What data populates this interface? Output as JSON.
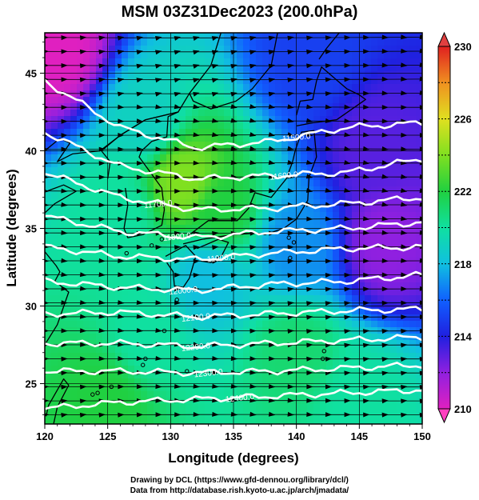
{
  "title": "MSM 03Z31Dec2023 (200.0hPa)",
  "credits": [
    "Drawing by DCL (https://www.gfd-dennou.org/library/dcl/)",
    "Data from http://database.rish.kyoto-u.ac.jp/arch/jmadata/"
  ],
  "chart_data": {
    "type": "heatmap",
    "title": "MSM 03Z31Dec2023 (200.0hPa)",
    "xlabel": "Longitude (degrees)",
    "ylabel": "Latitude  (degrees)",
    "xlim": [
      120,
      150
    ],
    "ylim": [
      22.4,
      47.6
    ],
    "xticks": [
      120,
      125,
      130,
      135,
      140,
      145,
      150
    ],
    "yticks": [
      25,
      30,
      35,
      40,
      45
    ],
    "shading": {
      "variable": "temperature (K)",
      "range": [
        210,
        230
      ],
      "colorbar_ticks": [
        210,
        214,
        218,
        222,
        226,
        230
      ],
      "colorbar_position": "right",
      "regions": [
        {
          "lon": 121,
          "lat": 46.5,
          "value": 210
        },
        {
          "lon": 128,
          "lat": 42,
          "value": 219
        },
        {
          "lon": 131,
          "lat": 38,
          "value": 224
        },
        {
          "lon": 134,
          "lat": 36,
          "value": 222
        },
        {
          "lon": 126,
          "lat": 36,
          "value": 220
        },
        {
          "lon": 141,
          "lat": 46,
          "value": 215
        },
        {
          "lon": 146,
          "lat": 40,
          "value": 213
        },
        {
          "lon": 147,
          "lat": 34,
          "value": 212
        },
        {
          "lon": 140,
          "lat": 34,
          "value": 217
        },
        {
          "lon": 133,
          "lat": 32,
          "value": 218
        },
        {
          "lon": 128,
          "lat": 28,
          "value": 220
        },
        {
          "lon": 140,
          "lat": 27,
          "value": 221
        },
        {
          "lon": 125,
          "lat": 24,
          "value": 222
        },
        {
          "lon": 145,
          "lat": 24,
          "value": 220
        }
      ]
    },
    "contours": [
      {
        "value": "11500.0",
        "lats": [
          44.5,
          41.5,
          40.2,
          40.6,
          41.5,
          41.8
        ]
      },
      {
        "value": "11600.0",
        "lats": [
          41.2,
          39.0,
          38.2,
          38.4,
          38.6,
          39.5
        ]
      },
      {
        "value": "11700.0",
        "lats": [
          38.6,
          37.0,
          36.2,
          36.3,
          36.6,
          37.0
        ]
      },
      {
        "value": "11800.0",
        "lats": [
          35.8,
          34.8,
          34.4,
          34.8,
          35.0,
          35.4
        ]
      },
      {
        "value": "11900.0",
        "lats": [
          33.8,
          33.2,
          33.0,
          33.4,
          33.7,
          33.8
        ]
      },
      {
        "value": "12000.0",
        "lats": [
          31.6,
          31.2,
          31.0,
          31.4,
          31.6,
          32.0
        ]
      },
      {
        "value": "12100.0",
        "lats": [
          29.5,
          29.6,
          29.3,
          29.5,
          29.7,
          29.8
        ]
      },
      {
        "value": "12200.0",
        "lats": [
          27.6,
          27.6,
          27.4,
          27.6,
          27.8,
          28.0
        ]
      },
      {
        "value": "12300.0",
        "lats": [
          25.8,
          25.8,
          25.7,
          25.8,
          26.0,
          26.2
        ]
      },
      {
        "value": "12400.0",
        "lats": [
          23.4,
          23.8,
          24.0,
          24.2,
          24.4,
          24.6
        ]
      }
    ],
    "contour_lons": [
      120,
      126,
      132,
      138,
      144,
      150
    ],
    "contour_labels": [
      {
        "text": "11500.0",
        "lon": 140.0
      },
      {
        "text": "11600.0",
        "lon": 139.0
      },
      {
        "text": "11700.0",
        "lon": 129.0
      },
      {
        "text": "11800.0",
        "lon": 130.5
      },
      {
        "text": "11900.0",
        "lon": 134.0
      },
      {
        "text": "12000.0",
        "lon": 131.0
      },
      {
        "text": "12100.0",
        "lon": 132.0
      },
      {
        "text": "12200.0",
        "lon": 132.0
      },
      {
        "text": "12300.0",
        "lon": 133.0
      },
      {
        "text": "12400.0",
        "lon": 135.5
      }
    ],
    "streamlines": "westerly flow, left to right, arrows on a regular grid"
  }
}
